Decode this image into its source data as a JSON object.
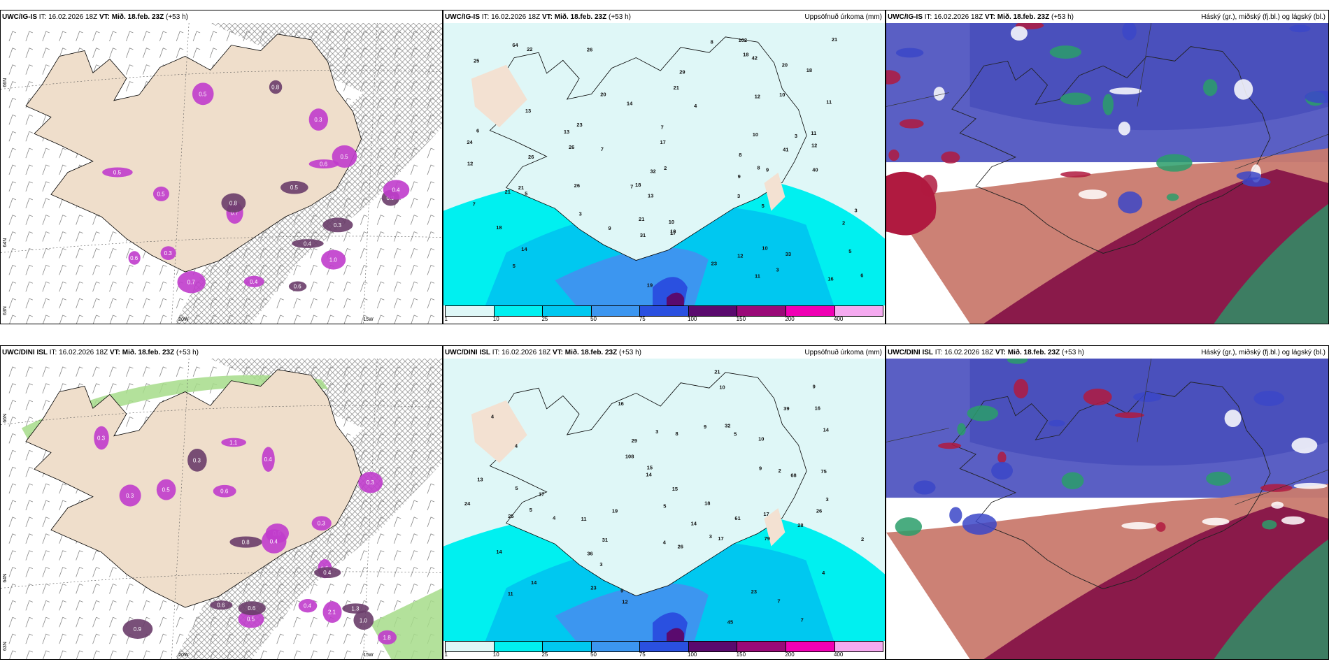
{
  "rows": [
    {
      "model": "UWC/IG-IS",
      "init": "IT: 16.02.2026 18Z",
      "valid": "VT: Mið. 18.feb. 23Z",
      "lead": "(+53 h)"
    },
    {
      "model": "UWC/DINI ISL",
      "init": "IT: 16.02.2026 18Z",
      "valid": "VT: Mið. 18.feb. 23Z",
      "lead": "(+53 h)"
    }
  ],
  "panel_titles": {
    "precip": "Uppsöfnuð úrkoma (mm)",
    "clouds": "Háský (gr.), miðský (fj.bl.) og lágský (bl.)"
  },
  "grid_labels": {
    "lat66": "66N",
    "lat64": "64N",
    "lat63": "63N",
    "lon20": "20W",
    "lon15": "15W"
  },
  "colorbar": {
    "colors": [
      "#dff7f7",
      "#00f0f0",
      "#00c8f0",
      "#3c96f0",
      "#2a50e0",
      "#5a0a6e",
      "#9a0a78",
      "#f000b4",
      "#f5aaf0"
    ],
    "ticks": [
      "1",
      "10",
      "25",
      "50",
      "75",
      "100",
      "150",
      "200",
      "400"
    ]
  },
  "snow_values": {
    "ig": [
      "0.6",
      "0.3",
      "0.5",
      "0.9",
      "0.7",
      "0.6",
      "0.8",
      "0.6",
      "0.5",
      "0.3",
      "1.0",
      "0.7",
      "0.5",
      "0.5",
      "0.4",
      "0.4",
      "0.3",
      "0.5",
      "0.8",
      "0.4"
    ],
    "dini": [
      "0.9",
      "0.6",
      "1.1",
      "1.3",
      "2.1",
      "1.8",
      "0.6",
      "0.4",
      "0.5",
      "0.8",
      "0.3",
      "0.5",
      "0.4",
      "0.6",
      "0.3",
      "1.0",
      "0.4",
      "0.4",
      "0.6",
      "0.3",
      "0.5",
      "0.3",
      "0.3"
    ]
  },
  "precip_values": {
    "ig": [
      "3",
      "3",
      "3",
      "2",
      "12",
      "10",
      "11",
      "7",
      "5",
      "3",
      "8",
      "9",
      "7",
      "5",
      "3",
      "16",
      "18",
      "21",
      "20",
      "14",
      "13",
      "12",
      "10",
      "18",
      "12",
      "14",
      "13",
      "12",
      "6",
      "5",
      "11",
      "8",
      "6",
      "10",
      "7",
      "5",
      "4",
      "2",
      "9",
      "11",
      "18",
      "26",
      "29",
      "19",
      "24",
      "20",
      "21",
      "23",
      "32",
      "22",
      "21",
      "13",
      "17",
      "33",
      "25",
      "26",
      "42",
      "64",
      "41",
      "18",
      "40",
      "31",
      "21",
      "23",
      "17",
      "18",
      "8",
      "9",
      "10",
      "7",
      "26",
      "26",
      "21",
      "102"
    ],
    "dini": [
      "7",
      "5",
      "3",
      "4",
      "4",
      "4",
      "14",
      "11",
      "10",
      "3",
      "5",
      "7",
      "3",
      "16",
      "18",
      "14",
      "17",
      "15",
      "13",
      "11",
      "9",
      "8",
      "2",
      "2",
      "3",
      "5",
      "4",
      "5",
      "14",
      "16",
      "17",
      "25",
      "36",
      "32",
      "29",
      "28",
      "26",
      "23",
      "39",
      "45",
      "31",
      "26",
      "23",
      "21",
      "19",
      "17",
      "14",
      "10",
      "9",
      "4",
      "61",
      "75",
      "79",
      "68",
      "108",
      "24",
      "12",
      "15",
      "14",
      "9",
      "9"
    ]
  }
}
